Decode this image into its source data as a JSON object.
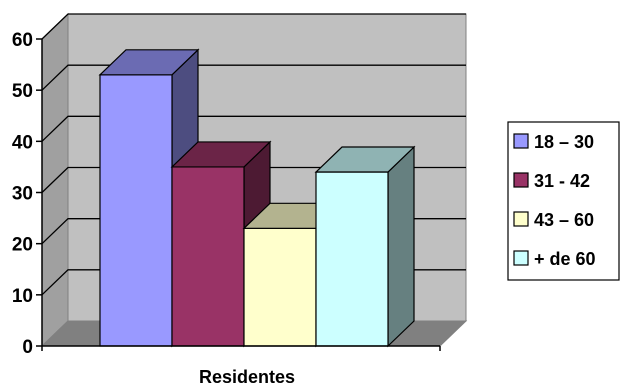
{
  "chart_data": {
    "type": "bar",
    "categories": [
      "Residentes"
    ],
    "series": [
      {
        "name": "18 – 30",
        "values": [
          53
        ]
      },
      {
        "name": "31 - 42",
        "values": [
          35
        ]
      },
      {
        "name": "43 – 60",
        "values": [
          23
        ]
      },
      {
        "name": "+ de 60",
        "values": [
          34
        ]
      }
    ],
    "title": "",
    "xlabel": "",
    "ylabel": "",
    "ylim": [
      0,
      60
    ],
    "yticks": [
      "0",
      "10",
      "20",
      "30",
      "40",
      "50",
      "60"
    ],
    "grid": true,
    "legend": "right",
    "style": "3d-clustered-column",
    "colors": {
      "series": [
        "#9999ff",
        "#993366",
        "#ffffcc",
        "#ccffff"
      ],
      "series_side": [
        "#4d4d80",
        "#4d1a33",
        "#808066",
        "#668080"
      ],
      "series_top": [
        "#6b6bb3",
        "#6b2447",
        "#b3b38f",
        "#8fb3b3"
      ],
      "wall": "#c0c0c0",
      "wall_side": "#a0a0a0",
      "floor": "#808080",
      "gridline": "#000000"
    }
  }
}
